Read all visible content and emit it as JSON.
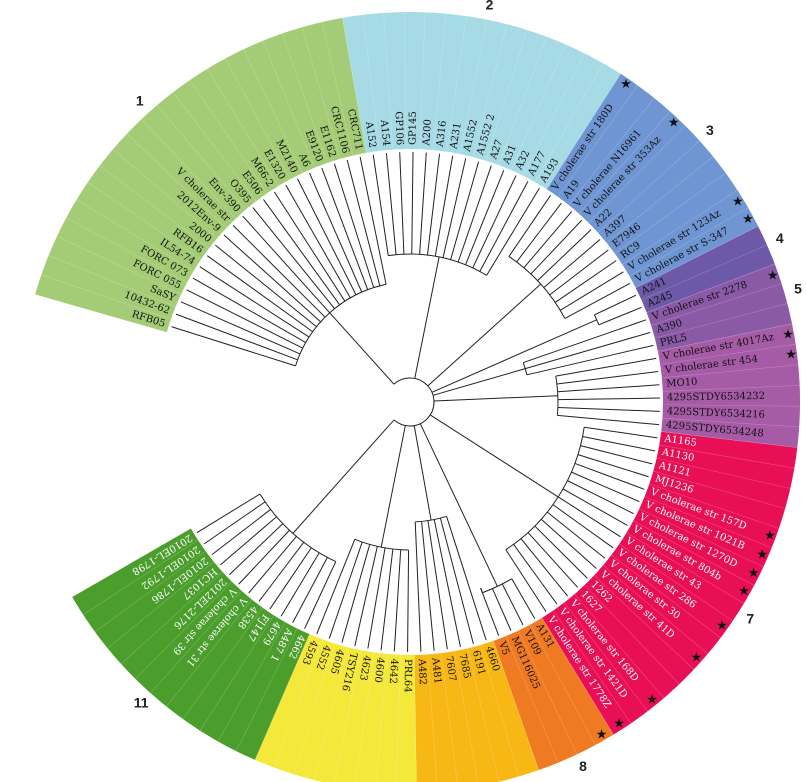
{
  "clades": [
    {
      "id": "1",
      "color": "#a4cc76",
      "leaves": [
        "RFB05",
        "10432-62",
        "SaSY",
        "FORC 055",
        "FORC 073",
        "IL54-74",
        "RFB16",
        "2000",
        "2012Env-9",
        "V cholerae str",
        "Env-390",
        "O395",
        "E506",
        "M66-2",
        "E1320",
        "M2140",
        "A6",
        "E9120",
        "E1162",
        "CRC1106",
        "CRC711"
      ]
    },
    {
      "id": "2",
      "color": "#a6dbe6",
      "leaves": [
        "A152",
        "A154",
        "GP106",
        "GP145",
        "A200",
        "A316",
        "A231",
        "A1552",
        "A1552 2",
        "A27",
        "A31",
        "A32",
        "A177",
        "A193"
      ]
    },
    {
      "id": "3",
      "color": "#6f95d2",
      "leaves": [
        "V cholerae str 180D",
        "A19",
        "V cholerae N16961",
        "V cholerae str 353Az",
        "A22",
        "A397",
        "E7946",
        "RC9",
        "V cholerae str 123Az",
        "V cholerae str S-347"
      ]
    },
    {
      "id": "4",
      "color": "#6e58a8",
      "leaves": [
        "A241",
        "A245"
      ]
    },
    {
      "id": "5",
      "color": "#8a5aa6",
      "leaves": [
        "V cholerae str 2278",
        "A390",
        "PRL5"
      ]
    },
    {
      "id": "6",
      "color": "#a65ba6",
      "leaves": [
        "V cholerae str 4017Az",
        "V cholerae str 454",
        "MO10",
        "4295STDY6534232",
        "4295STDY6534216",
        "4295STDY6534248"
      ]
    },
    {
      "id": "7",
      "color": "#e80f56",
      "leaves": [
        "A1165",
        "A1130",
        "A1121",
        "MJ1236",
        "V cholerae str 157D",
        "V cholerae str 1021B",
        "V cholerae str 1270D",
        "V cholerae str 804b",
        "V cholerae str 43",
        "V cholerae str 286",
        "V cholerae str 30",
        "V cholerae str 41D",
        "1262",
        "1627",
        "V cholerae str 168D",
        "V cholerae str 1421D",
        "V cholerae str 1778Z"
      ]
    },
    {
      "id": "8",
      "color": "#ef7a22",
      "leaves": [
        "A131",
        "V109",
        "MG116025",
        "V5"
      ]
    },
    {
      "id": "9",
      "color": "#f7b816",
      "leaves": [
        "4660",
        "6191",
        "7685",
        "7607",
        "A481",
        "A482"
      ]
    },
    {
      "id": "10",
      "color": "#f4e83a",
      "leaves": [
        "PRL64",
        "4642",
        "4600",
        "4623",
        "TSY216",
        "4605",
        "4552",
        "4593"
      ]
    },
    {
      "id": "11",
      "color": "#4b9e2c",
      "leaves": [
        "4662",
        "A487 1",
        "4679",
        "FJ147",
        "4538",
        "V cholerae str 31",
        "V cholerae str 39",
        "2012EL-2176",
        "HC1037",
        "2010EL-1786",
        "2010EL-1792",
        "2010EL-1798"
      ]
    }
  ],
  "starred": [
    "V cholerae str 180D",
    "V cholerae str 353Az",
    "V cholerae str 123Az",
    "V cholerae str S-347",
    "V cholerae str 2278",
    "V cholerae str 4017Az",
    "V cholerae str 454",
    "V cholerae str 157D",
    "V cholerae str 1021B",
    "V cholerae str 1270D",
    "V cholerae str 804b",
    "V cholerae str 286",
    "V cholerae str 41D",
    "V cholerae str 168D",
    "V cholerae str 1778Z",
    "A131"
  ]
}
